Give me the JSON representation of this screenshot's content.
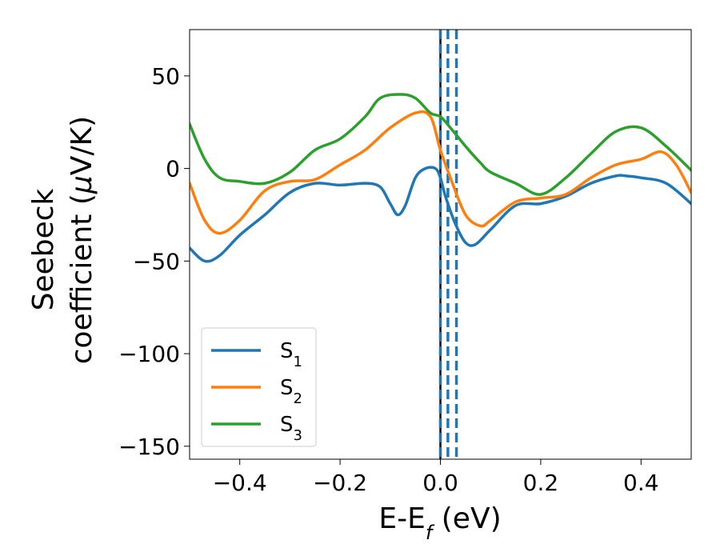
{
  "chart_data": {
    "type": "line",
    "title": "",
    "xlabel": "E-E",
    "xlabel_sub": "f",
    "xlabel_unit": " (eV)",
    "ylabel_line1": "Seebeck",
    "ylabel_line2": "coefficient  (",
    "ylabel_mu": "μ",
    "ylabel_unit": "V/K)",
    "xlim": [
      -0.5,
      0.5
    ],
    "ylim": [
      -157,
      75
    ],
    "xticks": [
      -0.4,
      -0.2,
      0.0,
      0.2,
      0.4
    ],
    "xtick_labels": [
      "−0.4",
      "−0.2",
      "0.0",
      "0.2",
      "0.4"
    ],
    "yticks": [
      50,
      0,
      -50,
      -100,
      -150
    ],
    "ytick_labels": [
      "50",
      "0",
      "−50",
      "−100",
      "−150"
    ],
    "grid": false,
    "legend_position": "lower-left",
    "vlines": [
      {
        "x": 0.0,
        "style": "solid",
        "color": "#000000"
      },
      {
        "x": 0.0,
        "style": "dashed",
        "color": "#1f77b4"
      },
      {
        "x": 0.015,
        "style": "dashed",
        "color": "#1f77b4"
      },
      {
        "x": 0.032,
        "style": "dashed",
        "color": "#1f77b4"
      }
    ],
    "series": [
      {
        "name": "S",
        "sub": "1",
        "color": "#1f77b4",
        "x": [
          -0.5,
          -0.47,
          -0.44,
          -0.4,
          -0.35,
          -0.3,
          -0.25,
          -0.2,
          -0.15,
          -0.12,
          -0.1,
          -0.085,
          -0.07,
          -0.05,
          -0.03,
          -0.01,
          0.0,
          0.01,
          0.03,
          0.05,
          0.07,
          0.1,
          0.15,
          0.2,
          0.25,
          0.3,
          0.35,
          0.37,
          0.4,
          0.45,
          0.5
        ],
        "y": [
          -43,
          -50,
          -47,
          -36,
          -25,
          -13,
          -8,
          -9,
          -8,
          -10,
          -19,
          -25,
          -20,
          -5,
          0,
          0,
          -5,
          -15,
          -30,
          -40,
          -41,
          -33,
          -20,
          -19,
          -15,
          -8,
          -4,
          -4,
          -5,
          -8,
          -19
        ]
      },
      {
        "name": "S",
        "sub": "2",
        "color": "#ff7f0e",
        "x": [
          -0.5,
          -0.47,
          -0.44,
          -0.4,
          -0.35,
          -0.3,
          -0.25,
          -0.2,
          -0.15,
          -0.1,
          -0.05,
          -0.02,
          0.0,
          0.02,
          0.05,
          0.08,
          0.1,
          0.15,
          0.2,
          0.25,
          0.3,
          0.35,
          0.4,
          0.44,
          0.47,
          0.5
        ],
        "y": [
          -8,
          -28,
          -35,
          -28,
          -12,
          -7,
          -6,
          2,
          10,
          22,
          30,
          28,
          10,
          -5,
          -25,
          -31,
          -28,
          -18,
          -16,
          -14,
          -5,
          2,
          5,
          9,
          2,
          -13
        ]
      },
      {
        "name": "S",
        "sub": "3",
        "color": "#2ca02c",
        "x": [
          -0.5,
          -0.47,
          -0.44,
          -0.4,
          -0.35,
          -0.3,
          -0.25,
          -0.2,
          -0.15,
          -0.12,
          -0.08,
          -0.05,
          -0.02,
          0.0,
          0.02,
          0.05,
          0.08,
          0.1,
          0.15,
          0.2,
          0.25,
          0.3,
          0.35,
          0.4,
          0.45,
          0.5
        ],
        "y": [
          24,
          5,
          -5,
          -7,
          -8,
          -2,
          10,
          16,
          28,
          38,
          40,
          38,
          30,
          28,
          22,
          12,
          3,
          -2,
          -8,
          -14,
          -5,
          8,
          20,
          22,
          12,
          -1
        ]
      }
    ]
  }
}
